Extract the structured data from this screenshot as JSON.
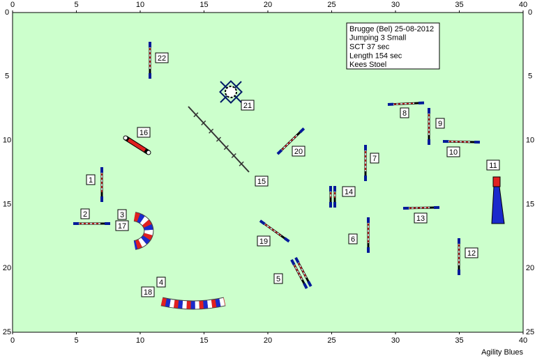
{
  "course_map": {
    "info": [
      "Brugge (Bel) 25-08-2012",
      "Jumping 3 Small",
      "SCT 37 sec",
      "Length 154 sec",
      "Kees Stoel"
    ],
    "x_ticks": [
      "0",
      "5",
      "10",
      "15",
      "20",
      "25",
      "30",
      "35",
      "40"
    ],
    "y_ticks": [
      "0",
      "5",
      "10",
      "15",
      "20",
      "25"
    ],
    "obstacles": [
      "22",
      "21",
      "16",
      "20",
      "15",
      "1",
      "2",
      "3",
      "17",
      "19",
      "14",
      "7",
      "8",
      "9",
      "10",
      "11",
      "13",
      "6",
      "12",
      "5",
      "4",
      "18"
    ],
    "credit": "Agility Blues"
  }
}
